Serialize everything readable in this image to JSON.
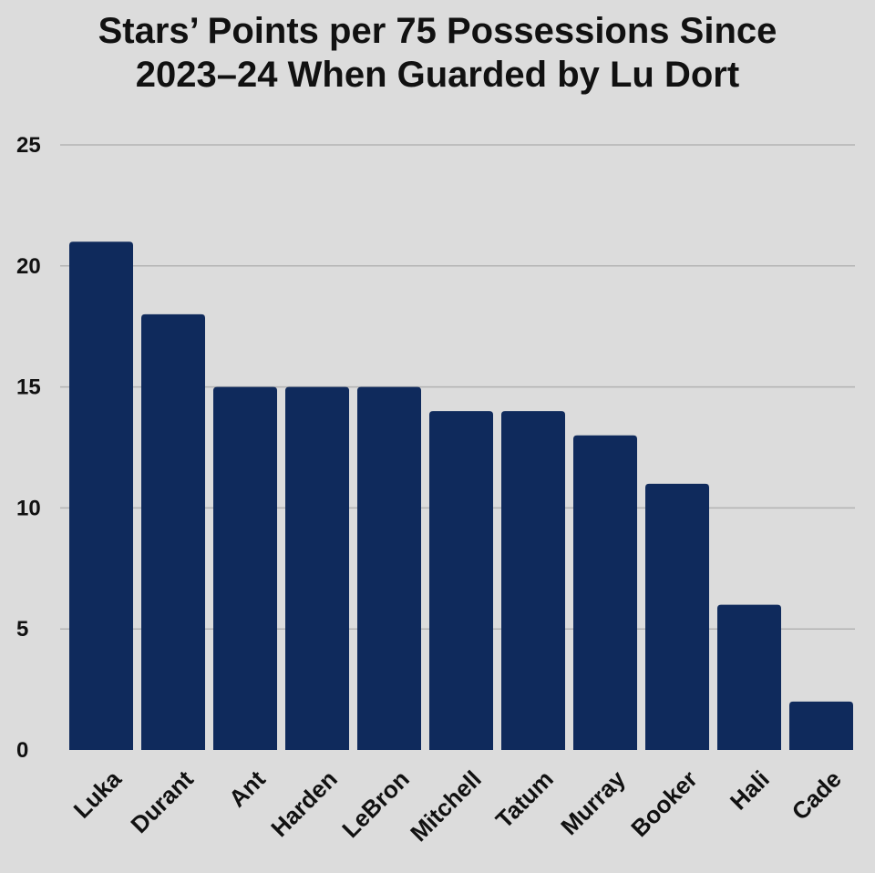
{
  "chart_data": {
    "type": "bar",
    "title_lines": [
      "Stars’ Points per 75 Possessions Since",
      "2023–24 When Guarded by Lu Dort"
    ],
    "categories": [
      "Luka",
      "Durant",
      "Ant",
      "Harden",
      "LeBron",
      "Mitchell",
      "Tatum",
      "Murray",
      "Booker",
      "Hali",
      "Cade"
    ],
    "values": [
      21,
      18,
      15,
      15,
      15,
      14,
      14,
      13,
      11,
      6,
      2
    ],
    "yticks": [
      0,
      5,
      10,
      15,
      20,
      25
    ],
    "ylim": [
      0,
      25
    ],
    "grid": true,
    "xlabel": "",
    "ylabel": "",
    "colors": {
      "bar": "#0f2a5c",
      "grid": "#b3b3b3",
      "background": "#dcdcdc",
      "text": "#111111"
    }
  }
}
